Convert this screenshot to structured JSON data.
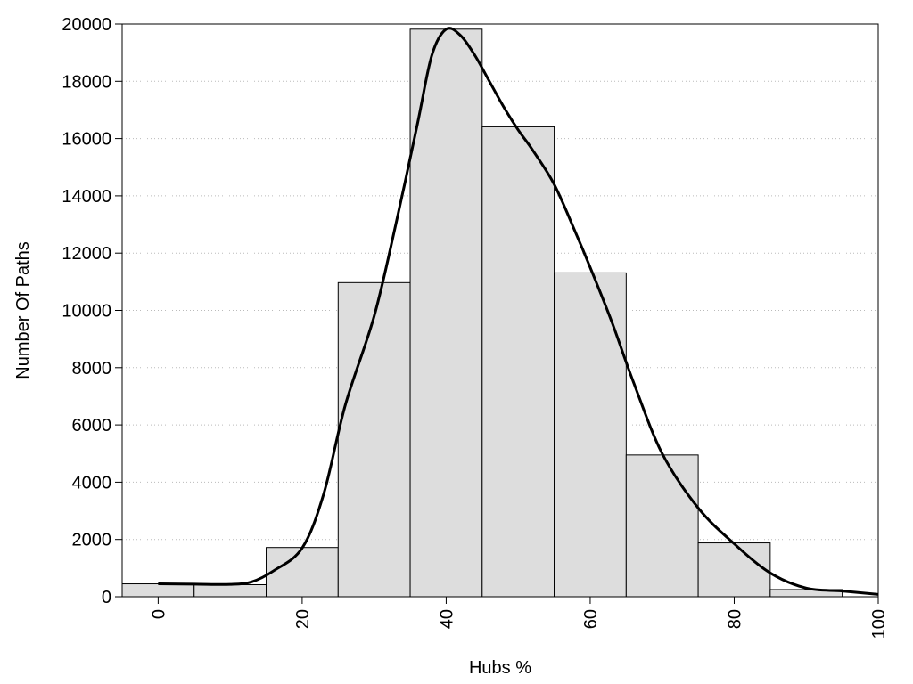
{
  "chart_data": {
    "type": "bar",
    "title": "",
    "xlabel": "Hubs %",
    "ylabel": "Number Of Paths",
    "xlim": [
      -5,
      100
    ],
    "ylim": [
      0,
      20000
    ],
    "x_ticks": [
      0,
      20,
      40,
      60,
      80,
      100
    ],
    "y_ticks": [
      0,
      2000,
      4000,
      6000,
      8000,
      10000,
      12000,
      14000,
      16000,
      18000,
      20000
    ],
    "grid": "horizontal dotted",
    "bin_width": 10,
    "bins": [
      {
        "x": 0,
        "value": 450
      },
      {
        "x": 10,
        "value": 420
      },
      {
        "x": 20,
        "value": 1720
      },
      {
        "x": 30,
        "value": 10970
      },
      {
        "x": 40,
        "value": 19820
      },
      {
        "x": 50,
        "value": 16410
      },
      {
        "x": 60,
        "value": 11310
      },
      {
        "x": 70,
        "value": 4950
      },
      {
        "x": 80,
        "value": 1880
      },
      {
        "x": 90,
        "value": 250
      }
    ],
    "curve": {
      "type": "line",
      "x": [
        0,
        5,
        10,
        13,
        16,
        20,
        23,
        26,
        30,
        33,
        36,
        38,
        40,
        42,
        44,
        46,
        48,
        50,
        52,
        55,
        58,
        60,
        63,
        66,
        70,
        75,
        80,
        85,
        90,
        95,
        100
      ],
      "y": [
        450,
        440,
        430,
        520,
        900,
        1700,
        3600,
        6700,
        9800,
        13000,
        16500,
        18900,
        19820,
        19600,
        18900,
        18000,
        17100,
        16300,
        15600,
        14400,
        12700,
        11500,
        9600,
        7500,
        5000,
        3100,
        1850,
        830,
        300,
        200,
        80
      ]
    },
    "colors": {
      "bar_fill": "#dddddd",
      "bar_stroke": "#000000",
      "curve": "#000000",
      "grid": "#bbbbbb"
    }
  }
}
